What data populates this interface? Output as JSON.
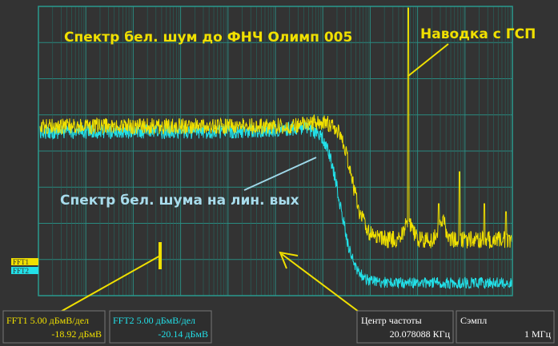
{
  "annotations": {
    "pre_filter": "Спектр бел. шум до ФНЧ Олимп 005",
    "interference": "Наводка с ГСП",
    "line_out": "Спектр бел. шума на лин. вых"
  },
  "markers": [
    "FFT1",
    "FFT2"
  ],
  "status": [
    {
      "line1": "FFT1 5.00 дБмВ/дел",
      "line2": "-18.92 дБмВ"
    },
    {
      "line1": "FFT2 5.00 дБмВ/дел",
      "line2": "-20.14 дБмВ"
    },
    {
      "line1": "Центр частоты",
      "line2": "20.078088 КГц"
    },
    {
      "line1": "Сэмпл",
      "line2": "1 МГц"
    }
  ]
}
